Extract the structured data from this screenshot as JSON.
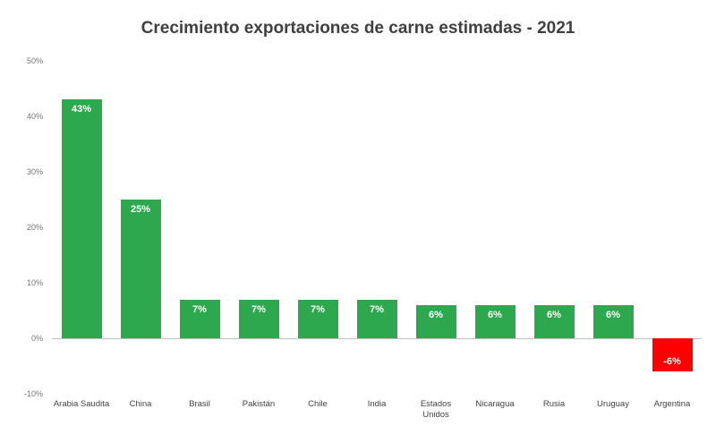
{
  "chart_data": {
    "type": "bar",
    "title": "Crecimiento exportaciones de carne estimadas - 2021",
    "categories": [
      "Arabia Saudita",
      "China",
      "Brasil",
      "Pakistán",
      "Chile",
      "India",
      "Estados Unidos",
      "Nicaragua",
      "Rusia",
      "Uruguay",
      "Argentina"
    ],
    "values": [
      43,
      25,
      7,
      7,
      7,
      7,
      6,
      6,
      6,
      6,
      -6
    ],
    "labels": [
      "43%",
      "25%",
      "7%",
      "7%",
      "7%",
      "7%",
      "6%",
      "6%",
      "6%",
      "6%",
      "-6%"
    ],
    "xlabel": "",
    "ylabel": "",
    "ylim": [
      -10,
      50
    ],
    "ytick_step": 10,
    "ytick_labels": [
      "50%",
      "40%",
      "30%",
      "20%",
      "10%",
      "0%",
      "-10%"
    ],
    "grid": false,
    "legend": "none",
    "colors": {
      "positive": "#2ea84e",
      "negative": "#ff0000",
      "bar_label": "#ffffff",
      "title": "#404040",
      "axis_text": "#757575",
      "baseline": "#c2c2c2"
    }
  }
}
